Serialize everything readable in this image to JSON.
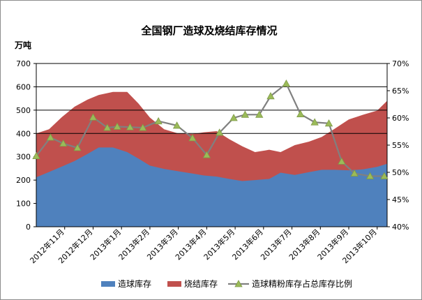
{
  "chart_data": {
    "type": "area",
    "title": "全国钢厂造球及烧结库存情况",
    "y_unit_label": "万吨",
    "x_tick_labels": [
      "2012年11月",
      "2012年12月",
      "2013年1月",
      "2013年2月",
      "2013年3月",
      "2013年4月",
      "2013年5月",
      "2013年6月",
      "2013年7月",
      "2013年8月",
      "2013年9月",
      "2013年10月"
    ],
    "y_left": {
      "ylim": [
        0,
        700
      ],
      "ticks": [
        "0",
        "100",
        "200",
        "300",
        "400",
        "500",
        "600",
        "700"
      ]
    },
    "y_right": {
      "ylim": [
        40,
        70
      ],
      "ticks": [
        "40%",
        "45%",
        "50%",
        "55%",
        "60%",
        "65%",
        "70%"
      ]
    },
    "x_range": [
      0,
      12.35
    ],
    "gridlines": [
      400,
      500,
      600,
      700
    ],
    "grid": "horizontal at 400–700",
    "legend_position": "bottom",
    "series": [
      {
        "name": "造球库存",
        "kind": "stacked-area",
        "color": "#4f81bd",
        "x": [
          0.0,
          0.45,
          0.9,
          1.35,
          1.8,
          2.2,
          2.7,
          3.2,
          3.6,
          4.0,
          4.5,
          5.0,
          5.5,
          5.9,
          6.35,
          6.8,
          7.25,
          7.7,
          8.2,
          8.6,
          9.1,
          9.6,
          10.05,
          10.5,
          11.0,
          11.5,
          12.0,
          12.35
        ],
        "values": [
          212,
          235,
          258,
          282,
          312,
          340,
          340,
          320,
          292,
          262,
          248,
          238,
          228,
          220,
          215,
          205,
          196,
          200,
          205,
          232,
          222,
          234,
          244,
          244,
          242,
          246,
          257,
          270
        ]
      },
      {
        "name": "烧结库存",
        "kind": "stacked-area",
        "color": "#c0504d",
        "top_totals": [
          400,
          418,
          470,
          515,
          545,
          565,
          578,
          578,
          528,
          468,
          418,
          400,
          398,
          405,
          410,
          375,
          345,
          320,
          330,
          320,
          350,
          365,
          385,
          420,
          460,
          480,
          498,
          540
        ]
      },
      {
        "name": "造球精粉库存占总库存比例",
        "kind": "line",
        "axis": "right",
        "color": "#808080",
        "marker_color": "#9bbb59",
        "x": [
          0.0,
          0.5,
          0.95,
          1.45,
          2.0,
          2.5,
          2.85,
          3.3,
          3.75,
          4.3,
          4.95,
          5.5,
          6.0,
          6.45,
          6.95,
          7.35,
          7.85,
          8.25,
          8.8,
          9.3,
          9.8,
          10.3,
          10.75,
          11.2,
          11.75,
          12.25
        ],
        "values": [
          53,
          56.4,
          55.3,
          54.5,
          60.1,
          58.2,
          58.4,
          58.3,
          58.2,
          59.4,
          58.6,
          56.3,
          53.2,
          57.3,
          60.0,
          60.6,
          60.6,
          64,
          66.3,
          60.7,
          59.2,
          59.0,
          52,
          49.8,
          49.3,
          49.3
        ]
      }
    ]
  }
}
